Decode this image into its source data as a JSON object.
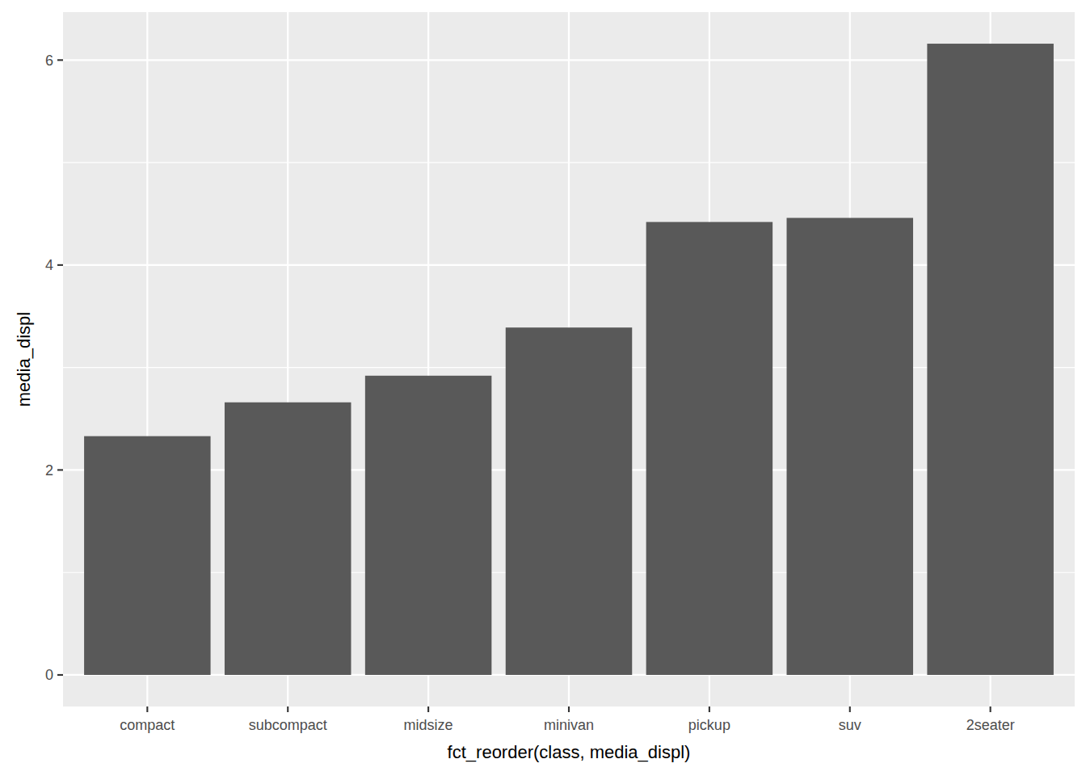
{
  "chart_data": {
    "type": "bar",
    "x_label": "fct_reorder(class, media_displ)",
    "y_label": "media_displ",
    "categories": [
      "compact",
      "subcompact",
      "midsize",
      "minivan",
      "pickup",
      "suv",
      "2seater"
    ],
    "values": [
      2.33,
      2.66,
      2.92,
      3.39,
      4.42,
      4.46,
      6.16
    ],
    "color": "#595959",
    "ylim": [
      -0.308,
      6.468
    ],
    "yticks": [
      0,
      2,
      4,
      6
    ],
    "grid": true
  }
}
